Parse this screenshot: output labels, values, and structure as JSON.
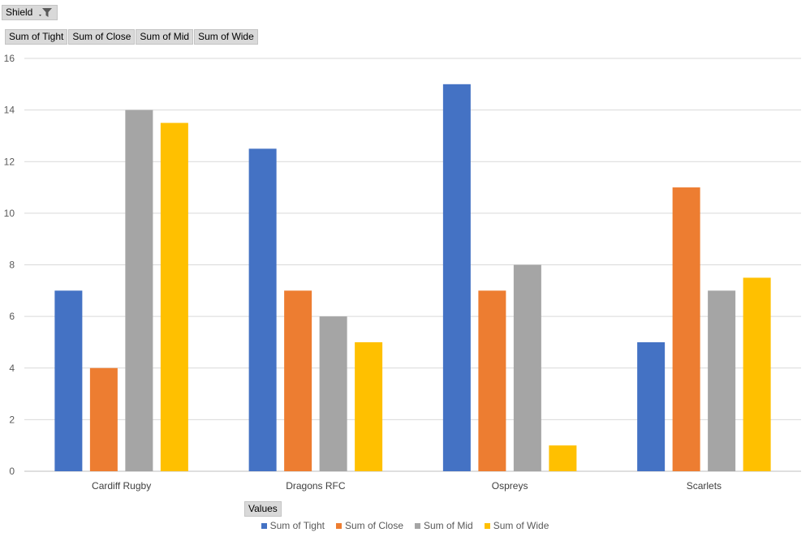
{
  "filter": {
    "label": "Shield",
    "icon": "filter-funnel-icon"
  },
  "values_buttons": [
    "Sum of Tight",
    "Sum of Close",
    "Sum of Mid",
    "Sum of Wide"
  ],
  "values_area_label": "Values",
  "colors": {
    "Sum of Tight": "#4472C4",
    "Sum of Close": "#ED7D31",
    "Sum of Mid": "#A5A5A5",
    "Sum of Wide": "#FFC000"
  },
  "chart_data": {
    "type": "bar",
    "categories": [
      "Cardiff Rugby",
      "Dragons RFC",
      "Ospreys",
      "Scarlets"
    ],
    "series": [
      {
        "name": "Sum of Tight",
        "values": [
          7,
          12.5,
          15,
          5
        ]
      },
      {
        "name": "Sum of Close",
        "values": [
          4,
          7,
          7,
          11
        ]
      },
      {
        "name": "Sum of Mid",
        "values": [
          14,
          6,
          8,
          7
        ]
      },
      {
        "name": "Sum of Wide",
        "values": [
          13.5,
          5,
          1,
          7.5
        ]
      }
    ],
    "ylim": [
      0,
      16
    ],
    "yticks": [
      0,
      2,
      4,
      6,
      8,
      10,
      12,
      14,
      16
    ],
    "grid": true,
    "legend_position": "bottom"
  }
}
